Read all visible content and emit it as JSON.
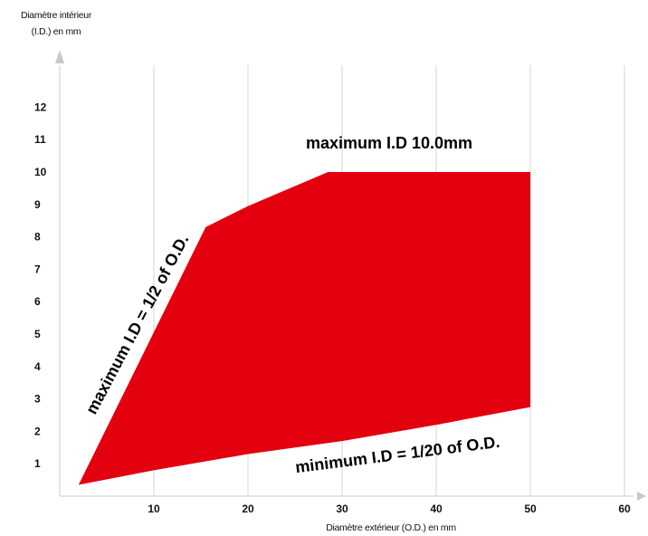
{
  "chart_data": {
    "type": "area",
    "ylabel_line1": "Diamètre intérieur",
    "ylabel_line2": "(I.D.) en mm",
    "xlabel": "Diamètre extérieur (O.D.) en mm",
    "x_ticks": [
      10,
      20,
      30,
      40,
      50,
      60
    ],
    "y_ticks": [
      1,
      2,
      3,
      4,
      5,
      6,
      7,
      8,
      9,
      10,
      11,
      12
    ],
    "xlim": [
      0,
      60
    ],
    "ylim": [
      0,
      12
    ],
    "grid": "vertical",
    "region_color": "#e3000f",
    "upper_boundary": [
      {
        "x": 2,
        "y": 0.35
      },
      {
        "x": 15.5,
        "y": 8.3
      },
      {
        "x": 20,
        "y": 8.95
      },
      {
        "x": 28.5,
        "y": 10
      },
      {
        "x": 50,
        "y": 10
      }
    ],
    "lower_boundary": [
      {
        "x": 2,
        "y": 0.35
      },
      {
        "x": 10,
        "y": 0.8
      },
      {
        "x": 20,
        "y": 1.3
      },
      {
        "x": 30,
        "y": 1.7
      },
      {
        "x": 40,
        "y": 2.2
      },
      {
        "x": 50,
        "y": 2.75
      }
    ],
    "annotations": [
      {
        "text": "maximum I.D 10.0mm",
        "anchor": "upper-limit"
      },
      {
        "text": "maximum I.D = 1/2 of O.D.",
        "anchor": "left-edge"
      },
      {
        "text": "minimum I.D = 1/20 of O.D.",
        "anchor": "lower-edge"
      }
    ]
  }
}
